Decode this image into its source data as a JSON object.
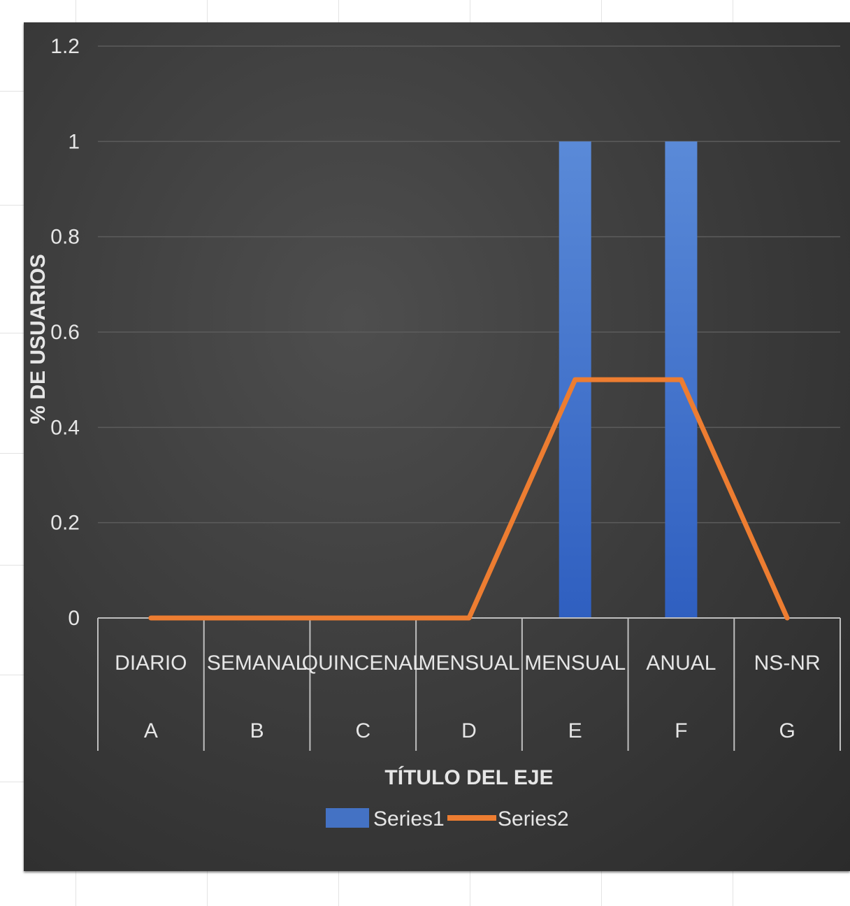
{
  "chart_data": {
    "type": "bar",
    "categories": [
      {
        "top": "DIARIO",
        "bottom": "A"
      },
      {
        "top": "SEMANAL",
        "bottom": "B"
      },
      {
        "top": "QUINCENAL",
        "bottom": "C"
      },
      {
        "top": "MENSUAL",
        "bottom": "D"
      },
      {
        "top": "MENSUAL",
        "bottom": "E"
      },
      {
        "top": "ANUAL",
        "bottom": "F"
      },
      {
        "top": "NS-NR",
        "bottom": "G"
      }
    ],
    "series": [
      {
        "name": "Series1",
        "type": "bar",
        "color": "#4472C4",
        "values": [
          0,
          0,
          0,
          0,
          1,
          1,
          0
        ]
      },
      {
        "name": "Series2",
        "type": "line",
        "color": "#ED7D31",
        "values": [
          0,
          0,
          0,
          0,
          0.5,
          0.5,
          0
        ]
      }
    ],
    "xlabel": "TÍTULO DEL EJE",
    "ylabel": "% DE USUARIOS",
    "ylim": [
      0,
      1.2
    ],
    "yticks": [
      "0",
      "0.2",
      "0.4",
      "0.6",
      "0.8",
      "1",
      "1.2"
    ],
    "grid": true,
    "legend_position": "bottom"
  }
}
